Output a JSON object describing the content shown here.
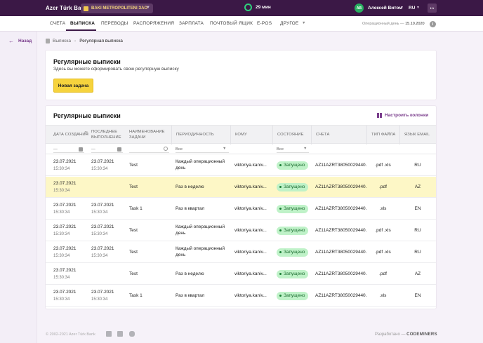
{
  "header": {
    "logo": "Azer Türk Bank",
    "company": "BAKI METROPOLITENI ЗАО",
    "timer": "29 мин",
    "avatar_initials": "AB",
    "user_name": "Алексей Витом",
    "lang": "RU"
  },
  "nav": {
    "items": [
      "СЧЕТА",
      "ВЫПИСКА",
      "ПЕРЕВОДЫ",
      "РАСПОРЯЖЕНИЯ",
      "ЗАРПЛАТА",
      "ПОЧТОВЫЙ ЯЩИК",
      "E-POS",
      "ДРУГОЕ"
    ],
    "active_index": 1,
    "operday_label": "Операционный день —",
    "operday_date": "15.10.2020"
  },
  "sidebar": {
    "back_label": "Назад"
  },
  "breadcrumb": {
    "root": "Выписка",
    "current": "Регулярная выписка"
  },
  "intro": {
    "title": "Регулярные выписки",
    "subtitle": "Здесь вы можете сформировать свою регулярную выписку",
    "new_task_label": "Новая задача"
  },
  "table": {
    "title": "Регулярные выписки",
    "columns_button": "Настроить колонки",
    "headers": {
      "created": "Дата создания",
      "last_run": "Последнее выполнение",
      "task_name": "Наименование задачи",
      "period": "Периодичность",
      "to": "Кому",
      "status": "Состояние",
      "account": "Счета",
      "file_type": "Тип файла",
      "email_lang": "Язык email"
    },
    "filters": {
      "created": "—",
      "last_run": "—",
      "period": "Все",
      "status": "Все"
    },
    "rows": [
      {
        "created": "23.07.2021",
        "created_time": "15:30:34",
        "last": "23.07.2021",
        "last_time": "15:30:34",
        "name": "Test",
        "period": "Каждый операционный день",
        "to": "viktoriya.kaniv...",
        "status": "Запущено",
        "account": "AZ11AZRT38050029440...",
        "file": ".pdf .xls",
        "lang": "RU",
        "highlight": false
      },
      {
        "created": "23.07.2021",
        "created_time": "15:30:34",
        "last": "",
        "last_time": "",
        "name": "Test",
        "period": "Раз в неделю",
        "to": "viktoriya.kaniv...",
        "status": "Запущено",
        "account": "AZ11AZRT38050029440...",
        "file": ".pdf",
        "lang": "AZ",
        "highlight": true
      },
      {
        "created": "23.07.2021",
        "created_time": "15:30:34",
        "last": "23.07.2021",
        "last_time": "15:30:34",
        "name": "Task 1",
        "period": "Раз в квартал",
        "to": "viktoriya.kaniv...",
        "status": "Запущено",
        "account": "AZ11AZRT38050029440...",
        "file": ".xls",
        "lang": "EN",
        "highlight": false
      },
      {
        "created": "23.07.2021",
        "created_time": "15:30:34",
        "last": "23.07.2021",
        "last_time": "15:30:34",
        "name": "Test",
        "period": "Каждый операционный день",
        "to": "viktoriya.kaniv...",
        "status": "Запущено",
        "account": "AZ11AZRT38050029440...",
        "file": ".pdf .xls",
        "lang": "RU",
        "highlight": false
      },
      {
        "created": "23.07.2021",
        "created_time": "15:30:34",
        "last": "23.07.2021",
        "last_time": "15:30:34",
        "name": "Test",
        "period": "Каждый операционный день",
        "to": "viktoriya.kaniv...",
        "status": "Запущено",
        "account": "AZ11AZRT38050029440...",
        "file": ".pdf .xls",
        "lang": "RU",
        "highlight": false
      },
      {
        "created": "23.07.2021",
        "created_time": "15:30:34",
        "last": "",
        "last_time": "",
        "name": "Test",
        "period": "Раз в неделю",
        "to": "viktoriya.kaniv...",
        "status": "Запущено",
        "account": "AZ11AZRT38050029440...",
        "file": ".pdf",
        "lang": "AZ",
        "highlight": false
      },
      {
        "created": "23.07.2021",
        "created_time": "15:30:34",
        "last": "23.07.2021",
        "last_time": "15:30:34",
        "name": "Task 1",
        "period": "Раз в квартал",
        "to": "viktoriya.kaniv...",
        "status": "Запущено",
        "account": "AZ11AZRT38050029440...",
        "file": ".xls",
        "lang": "EN",
        "highlight": false
      }
    ]
  },
  "footer": {
    "copyright": "© 2002-2021 Azer Türk Bank",
    "credit_prefix": "Разработано —",
    "credit_brand": "CODEMINERS",
    "social_icons": [
      "facebook-icon",
      "linkedin-icon",
      "instagram-icon"
    ]
  },
  "colors": {
    "topbar": "#3b1846",
    "accent": "#7a3d8c",
    "button_yellow": "#f6d33d",
    "row_highlight": "#fdf7c6",
    "status_green": "#bff2c8"
  }
}
